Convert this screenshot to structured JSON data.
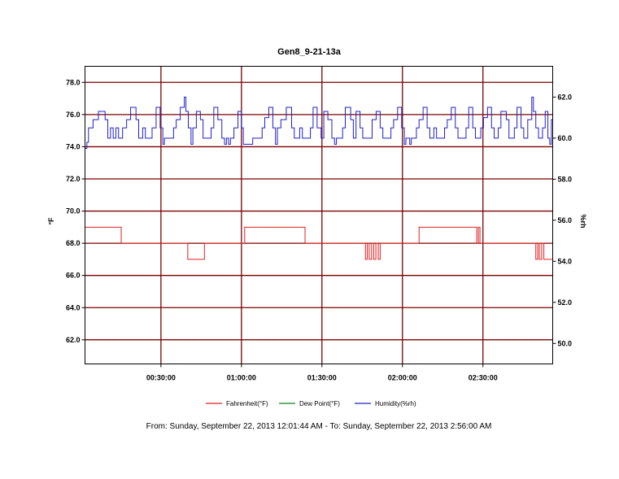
{
  "chart_data": {
    "type": "line",
    "title": "Gen8_9-21-13a",
    "ylabel_left": "°F",
    "ylabel_right": "%rh",
    "ylim_left": [
      60.5,
      79.0
    ],
    "ylim_right": [
      49.0,
      63.5
    ],
    "yticks_left": [
      "62.0",
      "64.0",
      "66.0",
      "68.0",
      "70.0",
      "72.0",
      "74.0",
      "76.0",
      "78.0"
    ],
    "yticks_right": [
      "50.0",
      "52.0",
      "54.0",
      "56.0",
      "58.0",
      "60.0",
      "62.0"
    ],
    "xlim_minutes": [
      0,
      174.3
    ],
    "xticks": [
      {
        "minutes": 28.3,
        "label": "00:30:00"
      },
      {
        "minutes": 58.3,
        "label": "01:00:00"
      },
      {
        "minutes": 88.3,
        "label": "01:30:00"
      },
      {
        "minutes": 118.3,
        "label": "02:00:00"
      },
      {
        "minutes": 148.3,
        "label": "02:30:00"
      }
    ],
    "grid": true,
    "legend_position": "bottom",
    "colors": {
      "grid": "#7b0000",
      "fahrenheit": "#e02020",
      "dewpoint": "#108010",
      "humidity": "#2020c8"
    },
    "series": [
      {
        "name": "Fahrenheit(°F)",
        "axis": "left",
        "points": [
          [
            0,
            69.0
          ],
          [
            13.5,
            69.0
          ],
          [
            13.5,
            68.0
          ],
          [
            38.3,
            68.0
          ],
          [
            38.3,
            67.0
          ],
          [
            44.5,
            67.0
          ],
          [
            44.5,
            68.0
          ],
          [
            59.5,
            68.0
          ],
          [
            59.5,
            69.0
          ],
          [
            82.0,
            69.0
          ],
          [
            82.0,
            68.0
          ],
          [
            104.5,
            68.0
          ],
          [
            104.5,
            67.0
          ],
          [
            105.2,
            67.0
          ],
          [
            105.2,
            68.0
          ],
          [
            105.9,
            68.0
          ],
          [
            105.9,
            67.0
          ],
          [
            106.8,
            67.0
          ],
          [
            106.8,
            68.0
          ],
          [
            107.6,
            68.0
          ],
          [
            107.6,
            67.0
          ],
          [
            108.4,
            67.0
          ],
          [
            108.4,
            68.0
          ],
          [
            109.3,
            68.0
          ],
          [
            109.3,
            67.0
          ],
          [
            110.0,
            67.0
          ],
          [
            110.0,
            68.0
          ],
          [
            124.5,
            68.0
          ],
          [
            124.5,
            69.0
          ],
          [
            146.0,
            69.0
          ],
          [
            146.0,
            68.0
          ],
          [
            146.6,
            68.0
          ],
          [
            146.6,
            69.0
          ],
          [
            147.2,
            69.0
          ],
          [
            147.2,
            68.0
          ],
          [
            168.0,
            68.0
          ],
          [
            168.0,
            67.0
          ],
          [
            168.7,
            67.0
          ],
          [
            168.7,
            68.0
          ],
          [
            169.3,
            68.0
          ],
          [
            169.3,
            67.0
          ],
          [
            170.2,
            67.0
          ],
          [
            170.2,
            68.0
          ],
          [
            171.0,
            68.0
          ],
          [
            171.0,
            67.0
          ],
          [
            174.3,
            67.0
          ]
        ]
      },
      {
        "name": "Dew Point(°F)",
        "axis": "left",
        "points": []
      },
      {
        "name": "Humidity(%rh)",
        "axis": "right",
        "points": [
          [
            0,
            59.5
          ],
          [
            0.7,
            59.5
          ],
          [
            0.7,
            59.8
          ],
          [
            1.3,
            59.8
          ],
          [
            1.3,
            60.5
          ],
          [
            3,
            60.5
          ],
          [
            3,
            60.9
          ],
          [
            5,
            60.9
          ],
          [
            5,
            61.3
          ],
          [
            7.5,
            61.3
          ],
          [
            7.5,
            60.9
          ],
          [
            8.5,
            60.9
          ],
          [
            8.5,
            60.0
          ],
          [
            9.5,
            60.0
          ],
          [
            9.5,
            60.5
          ],
          [
            10.5,
            60.5
          ],
          [
            10.5,
            60.0
          ],
          [
            11.5,
            60.0
          ],
          [
            11.5,
            60.5
          ],
          [
            12.5,
            60.5
          ],
          [
            12.5,
            60.0
          ],
          [
            14,
            60.0
          ],
          [
            14,
            60.5
          ],
          [
            15.5,
            60.5
          ],
          [
            15.5,
            60.9
          ],
          [
            17,
            60.9
          ],
          [
            17,
            61.5
          ],
          [
            19,
            61.5
          ],
          [
            19,
            60.9
          ],
          [
            20,
            60.9
          ],
          [
            20,
            60.0
          ],
          [
            21.5,
            60.0
          ],
          [
            21.5,
            60.5
          ],
          [
            22.5,
            60.5
          ],
          [
            22.5,
            60.0
          ],
          [
            25,
            60.0
          ],
          [
            25,
            60.5
          ],
          [
            26.5,
            60.5
          ],
          [
            26.5,
            61.5
          ],
          [
            28,
            61.5
          ],
          [
            28,
            60.5
          ],
          [
            29,
            60.5
          ],
          [
            29,
            59.7
          ],
          [
            29.6,
            59.7
          ],
          [
            29.6,
            60.0
          ],
          [
            33,
            60.0
          ],
          [
            33,
            60.5
          ],
          [
            34,
            60.5
          ],
          [
            34,
            60.9
          ],
          [
            35.5,
            60.9
          ],
          [
            35.5,
            61.5
          ],
          [
            37,
            61.5
          ],
          [
            37,
            62.0
          ],
          [
            37.6,
            62.0
          ],
          [
            37.6,
            61.3
          ],
          [
            38.5,
            61.3
          ],
          [
            38.5,
            60.5
          ],
          [
            39.5,
            60.5
          ],
          [
            39.5,
            59.7
          ],
          [
            40.2,
            59.7
          ],
          [
            40.2,
            60.5
          ],
          [
            41.5,
            60.5
          ],
          [
            41.5,
            61.3
          ],
          [
            43,
            61.3
          ],
          [
            43,
            60.9
          ],
          [
            44,
            60.9
          ],
          [
            44,
            60.0
          ],
          [
            47,
            60.0
          ],
          [
            47,
            60.5
          ],
          [
            48,
            60.5
          ],
          [
            48,
            61.5
          ],
          [
            49.5,
            61.5
          ],
          [
            49.5,
            60.9
          ],
          [
            51,
            60.9
          ],
          [
            51,
            60.0
          ],
          [
            52,
            60.0
          ],
          [
            52,
            59.7
          ],
          [
            52.7,
            59.7
          ],
          [
            52.7,
            60.0
          ],
          [
            53.5,
            60.0
          ],
          [
            53.5,
            59.7
          ],
          [
            54.2,
            59.7
          ],
          [
            54.2,
            60.0
          ],
          [
            55.5,
            60.0
          ],
          [
            55.5,
            60.5
          ],
          [
            57,
            60.5
          ],
          [
            57,
            61.3
          ],
          [
            58.3,
            61.3
          ],
          [
            58.3,
            60.5
          ],
          [
            59,
            60.5
          ],
          [
            59,
            59.7
          ],
          [
            62.5,
            59.7
          ],
          [
            62.5,
            60.0
          ],
          [
            66,
            60.0
          ],
          [
            66,
            60.5
          ],
          [
            67,
            60.5
          ],
          [
            67,
            61.0
          ],
          [
            68.5,
            61.0
          ],
          [
            68.5,
            61.5
          ],
          [
            70,
            61.5
          ],
          [
            70,
            60.5
          ],
          [
            71,
            60.5
          ],
          [
            71,
            59.7
          ],
          [
            71.7,
            59.7
          ],
          [
            71.7,
            60.5
          ],
          [
            73,
            60.5
          ],
          [
            73,
            60.9
          ],
          [
            75,
            60.9
          ],
          [
            75,
            61.5
          ],
          [
            77,
            61.5
          ],
          [
            77,
            60.5
          ],
          [
            78,
            60.5
          ],
          [
            78,
            60.0
          ],
          [
            80,
            60.0
          ],
          [
            80,
            60.5
          ],
          [
            81,
            60.5
          ],
          [
            81,
            60.0
          ],
          [
            84,
            60.0
          ],
          [
            84,
            60.5
          ],
          [
            85,
            60.5
          ],
          [
            85,
            61.5
          ],
          [
            86.5,
            61.5
          ],
          [
            86.5,
            60.5
          ],
          [
            88,
            60.5
          ],
          [
            88,
            60.0
          ],
          [
            89,
            60.0
          ],
          [
            89,
            61.3
          ],
          [
            90.5,
            61.3
          ],
          [
            90.5,
            60.9
          ],
          [
            92,
            60.9
          ],
          [
            92,
            60.0
          ],
          [
            93,
            60.0
          ],
          [
            93,
            59.7
          ],
          [
            93.7,
            59.7
          ],
          [
            93.7,
            60.0
          ],
          [
            96,
            60.0
          ],
          [
            96,
            60.5
          ],
          [
            97,
            60.5
          ],
          [
            97,
            61.5
          ],
          [
            99,
            61.5
          ],
          [
            99,
            60.9
          ],
          [
            100,
            60.9
          ],
          [
            100,
            60.0
          ],
          [
            101,
            60.0
          ],
          [
            101,
            61.3
          ],
          [
            102.5,
            61.3
          ],
          [
            102.5,
            60.5
          ],
          [
            103.5,
            60.5
          ],
          [
            103.5,
            60.0
          ],
          [
            107,
            60.0
          ],
          [
            107,
            60.9
          ],
          [
            108.5,
            60.9
          ],
          [
            108.5,
            61.3
          ],
          [
            110,
            61.3
          ],
          [
            110,
            60.5
          ],
          [
            111,
            60.5
          ],
          [
            111,
            60.0
          ],
          [
            114,
            60.0
          ],
          [
            114,
            60.5
          ],
          [
            115,
            60.5
          ],
          [
            115,
            60.9
          ],
          [
            116.5,
            60.9
          ],
          [
            116.5,
            61.5
          ],
          [
            118,
            61.5
          ],
          [
            118,
            60.5
          ],
          [
            119,
            60.5
          ],
          [
            119,
            59.7
          ],
          [
            119.6,
            59.7
          ],
          [
            119.6,
            60.0
          ],
          [
            121,
            60.0
          ],
          [
            121,
            59.7
          ],
          [
            121.6,
            59.7
          ],
          [
            121.6,
            60.0
          ],
          [
            123.5,
            60.0
          ],
          [
            123.5,
            60.5
          ],
          [
            124.5,
            60.5
          ],
          [
            124.5,
            60.9
          ],
          [
            126,
            60.9
          ],
          [
            126,
            61.5
          ],
          [
            127.5,
            61.5
          ],
          [
            127.5,
            60.5
          ],
          [
            128.5,
            60.5
          ],
          [
            128.5,
            60.0
          ],
          [
            130,
            60.0
          ],
          [
            130,
            60.5
          ],
          [
            131,
            60.5
          ],
          [
            131,
            60.0
          ],
          [
            134,
            60.0
          ],
          [
            134,
            60.5
          ],
          [
            135,
            60.5
          ],
          [
            135,
            60.9
          ],
          [
            136.5,
            60.9
          ],
          [
            136.5,
            61.5
          ],
          [
            138,
            61.5
          ],
          [
            138,
            60.5
          ],
          [
            139,
            60.5
          ],
          [
            139,
            60.0
          ],
          [
            142,
            60.0
          ],
          [
            142,
            60.5
          ],
          [
            143,
            60.5
          ],
          [
            143,
            61.5
          ],
          [
            144.5,
            61.5
          ],
          [
            144.5,
            60.5
          ],
          [
            145.5,
            60.5
          ],
          [
            145.5,
            60.0
          ],
          [
            147.5,
            60.0
          ],
          [
            147.5,
            60.5
          ],
          [
            148.5,
            60.5
          ],
          [
            148.5,
            61.0
          ],
          [
            150,
            61.0
          ],
          [
            150,
            61.5
          ],
          [
            151.5,
            61.5
          ],
          [
            151.5,
            60.5
          ],
          [
            152.5,
            60.5
          ],
          [
            152.5,
            60.0
          ],
          [
            154,
            60.0
          ],
          [
            154,
            60.5
          ],
          [
            155,
            60.5
          ],
          [
            155,
            61.3
          ],
          [
            157,
            61.3
          ],
          [
            157,
            60.9
          ],
          [
            158,
            60.9
          ],
          [
            158,
            60.0
          ],
          [
            160,
            60.0
          ],
          [
            160,
            60.5
          ],
          [
            161,
            60.5
          ],
          [
            161,
            61.5
          ],
          [
            162.5,
            61.5
          ],
          [
            162.5,
            60.5
          ],
          [
            163.5,
            60.5
          ],
          [
            163.5,
            60.0
          ],
          [
            165,
            60.0
          ],
          [
            165,
            60.9
          ],
          [
            166.5,
            60.9
          ],
          [
            166.5,
            62.0
          ],
          [
            167.1,
            62.0
          ],
          [
            167.1,
            61.3
          ],
          [
            168,
            61.3
          ],
          [
            168,
            60.5
          ],
          [
            169,
            60.5
          ],
          [
            169,
            60.0
          ],
          [
            170.5,
            60.0
          ],
          [
            170.5,
            60.5
          ],
          [
            171.5,
            60.5
          ],
          [
            171.5,
            61.3
          ],
          [
            172.5,
            61.3
          ],
          [
            172.5,
            60.0
          ],
          [
            173.2,
            60.0
          ],
          [
            173.2,
            59.7
          ],
          [
            173.8,
            59.7
          ],
          [
            173.8,
            60.9
          ],
          [
            174.3,
            60.9
          ]
        ]
      }
    ]
  },
  "footer": {
    "range_text": "From: Sunday, September 22, 2013 12:01:44 AM  -  To: Sunday, September 22, 2013 2:56:00 AM"
  }
}
